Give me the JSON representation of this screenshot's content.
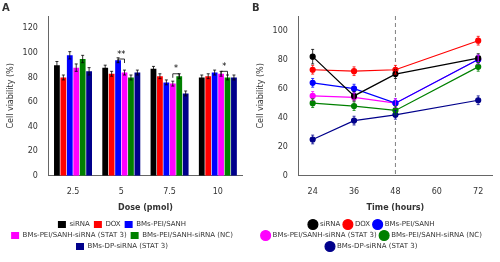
{
  "chart_data": [
    {
      "type": "bar",
      "title": "A",
      "xlabel": "Dose (pmol)",
      "ylabel": "Cell viability (%)",
      "categories": [
        "2.5",
        "5",
        "7.5",
        "10"
      ],
      "series": [
        {
          "name": "siRNA",
          "color": "#000000",
          "values": [
            90,
            88,
            87,
            80
          ],
          "errors": [
            3,
            2,
            2,
            2
          ]
        },
        {
          "name": "DOX",
          "color": "#ff0000",
          "values": [
            80,
            83,
            81,
            81
          ],
          "errors": [
            2,
            2,
            2,
            2
          ]
        },
        {
          "name": "BMs-PEI/SANH",
          "color": "#0000ff",
          "values": [
            98,
            94,
            76,
            84
          ],
          "errors": [
            3,
            2,
            2,
            2
          ]
        },
        {
          "name": "BMs-PEI/SANH-siRNA (STAT 3)",
          "color": "#ff00ff",
          "values": [
            88,
            84,
            75,
            83
          ],
          "errors": [
            3,
            2,
            2,
            2
          ]
        },
        {
          "name": "BMs-PEI/SANH-siRNA (NC)",
          "color": "#008000",
          "values": [
            95,
            80,
            81,
            80
          ],
          "errors": [
            3,
            2,
            2,
            2
          ]
        },
        {
          "name": "BMs-DP-siRNA (STAT 3)",
          "color": "#00008b",
          "values": [
            85,
            84,
            67,
            80
          ],
          "errors": [
            3,
            2,
            2,
            2
          ]
        }
      ],
      "ylim": [
        0,
        130
      ],
      "yticks": [
        0,
        20,
        40,
        60,
        80,
        100,
        120
      ],
      "grid": false,
      "legend": "bottom",
      "annotations": [
        {
          "text": "**",
          "category": "5",
          "series": [
            "BMs-PEI/SANH",
            "BMs-PEI/SANH-siRNA (STAT 3)"
          ],
          "y": 95
        },
        {
          "text": "*",
          "category": "7.5",
          "series": [
            "BMs-PEI/SANH-siRNA (STAT 3)",
            "BMs-PEI/SANH-siRNA (NC)"
          ],
          "y": 83
        },
        {
          "text": "*",
          "category": "10",
          "series": [
            "BMs-PEI/SANH-siRNA (STAT 3)",
            "BMs-PEI/SANH-siRNA (NC)"
          ],
          "y": 85
        }
      ]
    },
    {
      "type": "line",
      "title": "B",
      "xlabel": "Time (hours)",
      "ylabel": "Cell viability (%)",
      "x": [
        24,
        36,
        48,
        72
      ],
      "series": [
        {
          "name": "siRNA",
          "color": "#000000",
          "values": [
            82,
            55,
            70,
            81
          ],
          "errors": [
            5,
            3,
            3,
            3
          ]
        },
        {
          "name": "DOX",
          "color": "#ff0000",
          "values": [
            73,
            72,
            73,
            93
          ],
          "errors": [
            3,
            3,
            3,
            3
          ]
        },
        {
          "name": "BMs-PEI/SANH",
          "color": "#0000ff",
          "values": [
            64,
            60,
            50,
            80
          ],
          "errors": [
            3,
            3,
            3,
            3
          ]
        },
        {
          "name": "BMs-PEI/SANH-siRNA (STAT 3)",
          "color": "#ff00ff",
          "values": [
            55,
            54,
            50,
            80
          ],
          "errors": [
            3,
            3,
            3,
            3
          ]
        },
        {
          "name": "BMs-PEI/SANH-siRNA (NC)",
          "color": "#008000",
          "values": [
            50,
            48,
            45,
            75
          ],
          "errors": [
            3,
            3,
            3,
            3
          ]
        },
        {
          "name": "BMs-DP-siRNA (STAT 3)",
          "color": "#00008b",
          "values": [
            25,
            38,
            42,
            52
          ],
          "errors": [
            3,
            3,
            3,
            3
          ]
        }
      ],
      "xlim": [
        20,
        76
      ],
      "xticks": [
        24,
        36,
        48,
        60,
        72
      ],
      "ylim": [
        0,
        110
      ],
      "yticks": [
        0,
        20,
        40,
        60,
        80,
        100
      ],
      "vlines": [
        48
      ],
      "marker": "circle",
      "grid": false,
      "legend": "bottom"
    }
  ]
}
